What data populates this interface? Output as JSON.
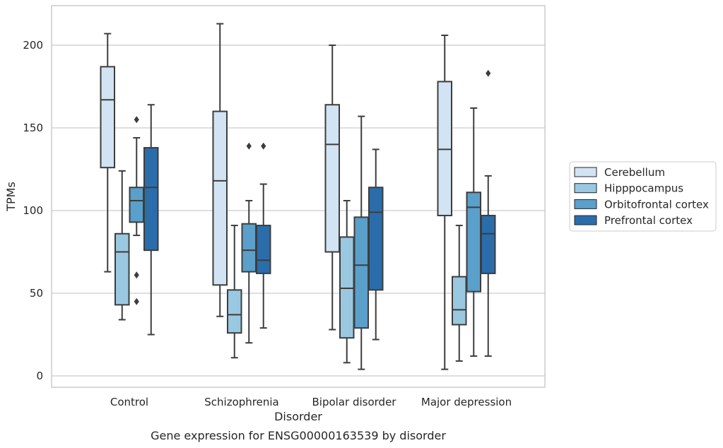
{
  "chart_data": {
    "type": "box",
    "title": "Gene expression for ENSG00000163539 by disorder",
    "xlabel": "Disorder",
    "ylabel": "TPMs",
    "ylim": [
      -7,
      224
    ],
    "yticks": [
      0,
      50,
      100,
      150,
      200
    ],
    "grid": true,
    "legend_placement": "right",
    "categories": [
      "Control",
      "Schizophrenia",
      "Bipolar disorder",
      "Major depression"
    ],
    "series": [
      {
        "name": "Cerebellum",
        "color": "#d2e3f3",
        "boxes": [
          {
            "whisker_low": 63,
            "q1": 126,
            "median": 167,
            "q3": 187,
            "whisker_high": 207,
            "outliers": []
          },
          {
            "whisker_low": 36,
            "q1": 55,
            "median": 118,
            "q3": 160,
            "whisker_high": 213,
            "outliers": []
          },
          {
            "whisker_low": 28,
            "q1": 75,
            "median": 140,
            "q3": 164,
            "whisker_high": 200,
            "outliers": []
          },
          {
            "whisker_low": 4,
            "q1": 97,
            "median": 137,
            "q3": 178,
            "whisker_high": 206,
            "outliers": []
          }
        ]
      },
      {
        "name": "Hipppocampus",
        "color": "#9ac8e0",
        "boxes": [
          {
            "whisker_low": 34,
            "q1": 43,
            "median": 75,
            "q3": 86,
            "whisker_high": 124,
            "outliers": []
          },
          {
            "whisker_low": 11,
            "q1": 26,
            "median": 37,
            "q3": 52,
            "whisker_high": 91,
            "outliers": []
          },
          {
            "whisker_low": 8,
            "q1": 23,
            "median": 53,
            "q3": 84,
            "whisker_high": 106,
            "outliers": []
          },
          {
            "whisker_low": 9,
            "q1": 31,
            "median": 40,
            "q3": 60,
            "whisker_high": 91,
            "outliers": []
          }
        ]
      },
      {
        "name": "Orbitofrontal cortex",
        "color": "#5b9fcb",
        "boxes": [
          {
            "whisker_low": 85,
            "q1": 93,
            "median": 106,
            "q3": 114,
            "whisker_high": 144,
            "outliers": [
              155,
              61,
              45
            ]
          },
          {
            "whisker_low": 20,
            "q1": 63,
            "median": 76,
            "q3": 92,
            "whisker_high": 106,
            "outliers": [
              139
            ]
          },
          {
            "whisker_low": 4,
            "q1": 29,
            "median": 67,
            "q3": 96,
            "whisker_high": 157,
            "outliers": []
          },
          {
            "whisker_low": 12,
            "q1": 51,
            "median": 102,
            "q3": 111,
            "whisker_high": 162,
            "outliers": []
          }
        ]
      },
      {
        "name": "Prefrontal cortex",
        "color": "#2b6dab",
        "boxes": [
          {
            "whisker_low": 25,
            "q1": 76,
            "median": 114,
            "q3": 138,
            "whisker_high": 164,
            "outliers": []
          },
          {
            "whisker_low": 29,
            "q1": 62,
            "median": 70,
            "q3": 91,
            "whisker_high": 116,
            "outliers": [
              139
            ]
          },
          {
            "whisker_low": 22,
            "q1": 52,
            "median": 99,
            "q3": 114,
            "whisker_high": 137,
            "outliers": []
          },
          {
            "whisker_low": 12,
            "q1": 62,
            "median": 86,
            "q3": 97,
            "whisker_high": 121,
            "outliers": [
              183
            ]
          }
        ]
      }
    ]
  }
}
